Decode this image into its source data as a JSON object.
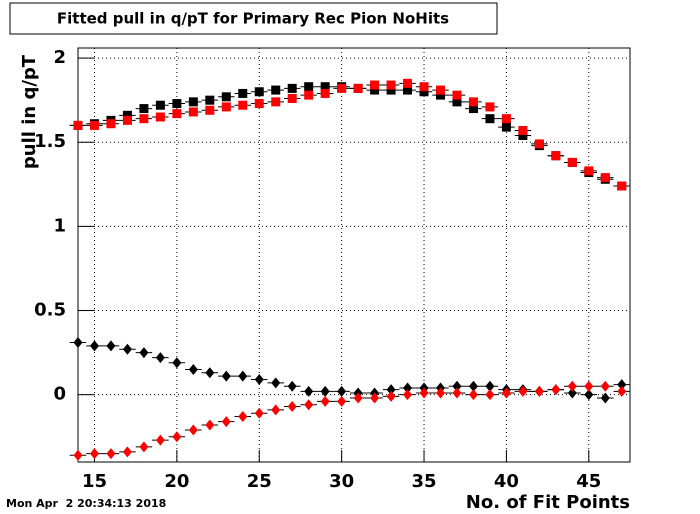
{
  "chart_data": {
    "type": "scatter",
    "title": "Fitted pull in q/pT for Primary Rec Pion NoHits",
    "xlabel": "No. of Fit Points",
    "ylabel": "pull in q/pT",
    "footnote": "Mon Apr  2 20:34:13 2018",
    "x": [
      14,
      15,
      16,
      17,
      18,
      19,
      20,
      21,
      22,
      23,
      24,
      25,
      26,
      27,
      28,
      29,
      30,
      31,
      32,
      33,
      34,
      35,
      36,
      37,
      38,
      39,
      40,
      41,
      42,
      43,
      44,
      45,
      46,
      47
    ],
    "series": [
      {
        "color": "#000000",
        "marker": "square",
        "values": [
          1.6,
          1.61,
          1.63,
          1.66,
          1.7,
          1.72,
          1.73,
          1.74,
          1.75,
          1.77,
          1.79,
          1.8,
          1.81,
          1.82,
          1.83,
          1.83,
          1.83,
          1.82,
          1.81,
          1.81,
          1.81,
          1.8,
          1.78,
          1.74,
          1.7,
          1.64,
          1.59,
          1.54,
          1.48,
          1.42,
          1.38,
          1.32,
          1.28,
          1.24
        ]
      },
      {
        "color": "#ff0000",
        "marker": "square",
        "values": [
          1.6,
          1.6,
          1.61,
          1.63,
          1.64,
          1.65,
          1.67,
          1.68,
          1.69,
          1.71,
          1.72,
          1.73,
          1.74,
          1.76,
          1.78,
          1.79,
          1.82,
          1.82,
          1.84,
          1.84,
          1.85,
          1.83,
          1.81,
          1.78,
          1.74,
          1.71,
          1.64,
          1.57,
          1.49,
          1.42,
          1.38,
          1.33,
          1.29,
          1.24
        ]
      },
      {
        "color": "#000000",
        "marker": "diamond",
        "values": [
          0.31,
          0.29,
          0.29,
          0.27,
          0.25,
          0.22,
          0.19,
          0.15,
          0.13,
          0.11,
          0.11,
          0.09,
          0.07,
          0.05,
          0.02,
          0.02,
          0.02,
          0.01,
          0.01,
          0.03,
          0.04,
          0.04,
          0.04,
          0.05,
          0.05,
          0.05,
          0.03,
          0.03,
          0.02,
          0.03,
          0.01,
          0.0,
          -0.02,
          0.06
        ]
      },
      {
        "color": "#ff0000",
        "marker": "diamond",
        "values": [
          -0.36,
          -0.35,
          -0.35,
          -0.34,
          -0.31,
          -0.27,
          -0.25,
          -0.21,
          -0.18,
          -0.16,
          -0.13,
          -0.11,
          -0.09,
          -0.07,
          -0.06,
          -0.04,
          -0.04,
          -0.02,
          -0.02,
          -0.01,
          0.0,
          0.01,
          0.01,
          0.01,
          0.0,
          0.0,
          0.01,
          0.02,
          0.02,
          0.03,
          0.05,
          0.05,
          0.05,
          0.02
        ]
      }
    ],
    "xlim": [
      14,
      47.5
    ],
    "ylim": [
      -0.4,
      2.06
    ],
    "xticks": [
      15,
      20,
      25,
      30,
      35,
      40,
      45
    ],
    "yticks": [
      0,
      0.5,
      1,
      1.5,
      2
    ],
    "grid": true
  }
}
